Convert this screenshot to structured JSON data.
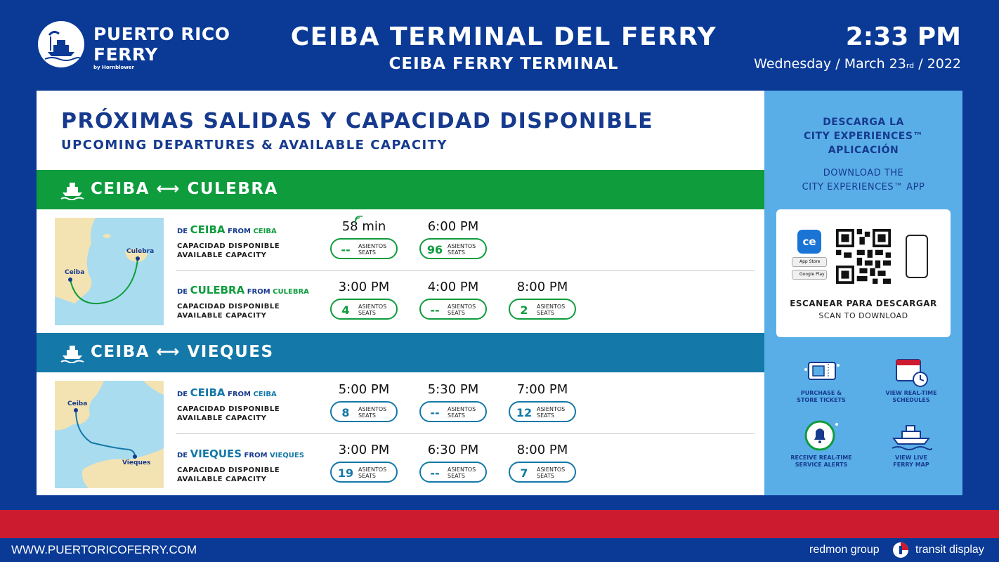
{
  "header": {
    "brand_line_1": "PUERTO RICO",
    "brand_line_2": "FERRY",
    "brand_sub": "by Hornblower",
    "title_es": "CEIBA TERMINAL DEL FERRY",
    "title_en": "CEIBA FERRY TERMINAL",
    "time": "2:33 PM",
    "date": {
      "weekday": "Wednesday",
      "sep": "/",
      "month_day": "March 23",
      "ordinal": "rd",
      "year": "2022"
    }
  },
  "section": {
    "title_es": "PRÓXIMAS SALIDAS Y CAPACIDAD DISPONIBLE",
    "title_en": "UPCOMING DEPARTURES & AVAILABLE CAPACITY"
  },
  "labels": {
    "de": "DE",
    "from": "FROM",
    "cap_es": "CAPACIDAD DISPONIBLE",
    "cap_en": "AVAILABLE CAPACITY",
    "asientos": "ASIENTOS",
    "seats": "SEATS"
  },
  "routes": [
    {
      "name": "CEIBA ⟷ CULEBRA",
      "color": "#0e9c3d",
      "map_labels": [
        "Culebra",
        "Ceiba"
      ],
      "rows": [
        {
          "origin": "CEIBA",
          "origin_en": "CEIBA",
          "departures": [
            {
              "time": "58 min",
              "seats": "--"
            },
            {
              "time": "6:00 PM",
              "seats": "96"
            }
          ]
        },
        {
          "origin": "CULEBRA",
          "origin_en": "CULEBRA",
          "departures": [
            {
              "time": "3:00 PM",
              "seats": "4"
            },
            {
              "time": "4:00 PM",
              "seats": "--"
            },
            {
              "time": "8:00 PM",
              "seats": "2"
            }
          ]
        }
      ]
    },
    {
      "name": "CEIBA ⟷ VIEQUES",
      "color": "#1478a8",
      "map_labels": [
        "Ceiba",
        "Vieques"
      ],
      "rows": [
        {
          "origin": "CEIBA",
          "origin_en": "CEIBA",
          "departures": [
            {
              "time": "5:00 PM",
              "seats": "8"
            },
            {
              "time": "5:30 PM",
              "seats": "--"
            },
            {
              "time": "7:00 PM",
              "seats": "12"
            }
          ]
        },
        {
          "origin": "VIEQUES",
          "origin_en": "VIEQUES",
          "departures": [
            {
              "time": "3:00 PM",
              "seats": "19"
            },
            {
              "time": "6:30 PM",
              "seats": "--"
            },
            {
              "time": "8:00 PM",
              "seats": "7"
            }
          ]
        }
      ]
    }
  ],
  "side": {
    "dl_title_1": "DESCARGA LA",
    "dl_title_2": "CITY EXPERIENCES™",
    "dl_title_3": "APLICACIÓN",
    "dl_sub_1": "DOWNLOAD THE",
    "dl_sub_2": "CITY EXPERIENCES™ APP",
    "ce_badge": "ce",
    "app_store": "App Store",
    "google_play": "Google Play",
    "scan_es": "ESCANEAR PARA DESCARGAR",
    "scan_en": "SCAN TO DOWNLOAD",
    "features": [
      {
        "line1": "PURCHASE &",
        "line2": "STORE TICKETS",
        "icon": "ticket-icon"
      },
      {
        "line1": "VIEW REAL-TIME",
        "line2": "SCHEDULES",
        "icon": "calendar-clock-icon"
      },
      {
        "line1": "RECEIVE REAL-TIME",
        "line2": "SERVICE ALERTS",
        "icon": "bell-icon"
      },
      {
        "line1": "VIEW LIVE",
        "line2": "FERRY MAP",
        "icon": "ferry-map-icon"
      }
    ]
  },
  "footer": {
    "website": "WWW.PUERTORICOFERRY.COM",
    "credit_1": "redmon group",
    "credit_2": "transit display"
  },
  "colors": {
    "navy": "#0a3a96",
    "green": "#0e9c3d",
    "teal": "#1478a8",
    "red": "#cc1b2f",
    "side_blue": "#5aaee8"
  }
}
